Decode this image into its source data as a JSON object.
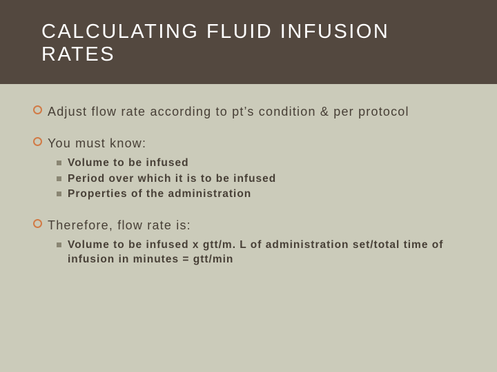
{
  "colors": {
    "background": "#cbcbba",
    "band": "#53483f",
    "title_text": "#ffffff",
    "body_text": "#473f36",
    "ring_bullet": "#d17a45",
    "square_bullet": "#8a8673"
  },
  "typography": {
    "title_fontsize": 29,
    "title_letter_spacing": 2.5,
    "lvl1_fontsize": 18,
    "lvl1_letter_spacing": 1.2,
    "lvl2_fontsize": 15.5,
    "lvl2_letter_spacing": 1.0,
    "lvl2_weight": 700
  },
  "title": "CALCULATING FLUID INFUSION RATES",
  "bullets": [
    {
      "text": "Adjust flow rate according to pt’s condition & per protocol",
      "sub": []
    },
    {
      "text": "You must know:",
      "sub": [
        "Volume to be infused",
        "Period over which it is to be infused",
        "Properties of the administration"
      ]
    },
    {
      "text": "Therefore, flow rate is:",
      "sub": [
        "Volume to be infused x gtt/m. L of administration set/total time of infusion in minutes = gtt/min"
      ]
    }
  ]
}
